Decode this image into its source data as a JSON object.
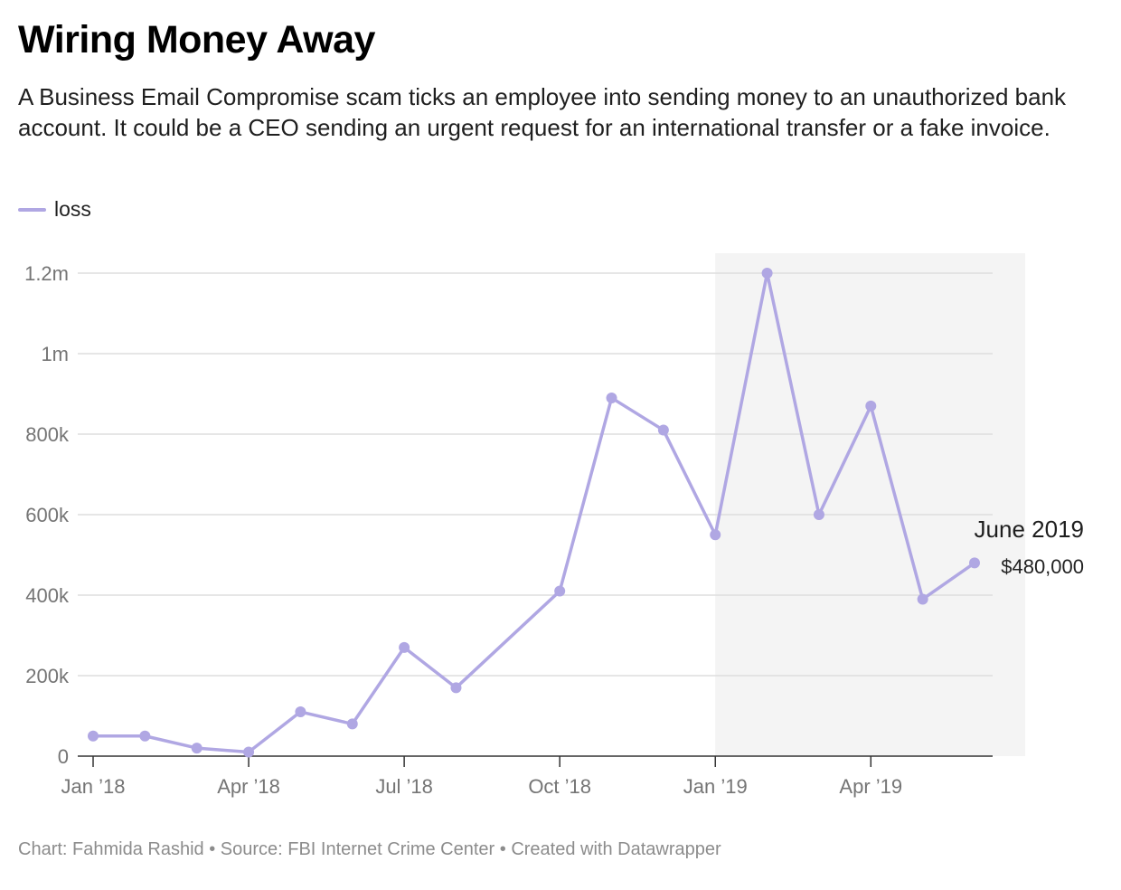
{
  "title": "Wiring Money Away",
  "subtitle": "A Business Email Compromise scam ticks an employee into sending money to an unauthorized bank account. It could be a CEO sending an urgent request for an international transfer or a fake invoice.",
  "legend": [
    {
      "label": "loss",
      "color": "#b0a7e3"
    }
  ],
  "footer": "Chart: Fahmida Rashid • Source: FBI Internet Crime Center • Created with Datawrapper",
  "colors": {
    "line": "#b0a7e3",
    "highlight_band": "#f4f4f4",
    "grid": "#dddddd",
    "axis": "#333333"
  },
  "chart_data": {
    "type": "line",
    "title": "Wiring Money Away",
    "xlabel": "",
    "ylabel": "",
    "x": [
      "2018-01",
      "2018-02",
      "2018-03",
      "2018-04",
      "2018-05",
      "2018-06",
      "2018-07",
      "2018-08",
      "2018-10",
      "2018-11",
      "2018-12",
      "2019-01",
      "2019-02",
      "2019-03",
      "2019-04",
      "2019-05",
      "2019-06"
    ],
    "series": [
      {
        "name": "loss",
        "values": [
          50000,
          50000,
          20000,
          10000,
          110000,
          80000,
          270000,
          170000,
          410000,
          890000,
          810000,
          550000,
          1200000,
          600000,
          870000,
          390000,
          480000
        ]
      }
    ],
    "ylim": [
      0,
      1200000
    ],
    "y_ticks": [
      {
        "value": 0,
        "label": "0"
      },
      {
        "value": 200000,
        "label": "200k"
      },
      {
        "value": 400000,
        "label": "400k"
      },
      {
        "value": 600000,
        "label": "600k"
      },
      {
        "value": 800000,
        "label": "800k"
      },
      {
        "value": 1000000,
        "label": "1m"
      },
      {
        "value": 1200000,
        "label": "1.2m"
      }
    ],
    "x_ticks": [
      {
        "value": "2018-01",
        "label": "Jan ’18"
      },
      {
        "value": "2018-04",
        "label": "Apr ’18"
      },
      {
        "value": "2018-07",
        "label": "Jul ’18"
      },
      {
        "value": "2018-10",
        "label": "Oct ’18"
      },
      {
        "value": "2019-01",
        "label": "Jan ’19"
      },
      {
        "value": "2019-04",
        "label": "Apr ’19"
      }
    ],
    "xlim": [
      "2018-01",
      "2019-06"
    ],
    "highlight_range": [
      "2019-01",
      "2019-06"
    ],
    "grid": true,
    "legend_position": "top-left",
    "annotation": {
      "x": "2019-06",
      "title": "June 2019",
      "value": "$480,000"
    }
  }
}
